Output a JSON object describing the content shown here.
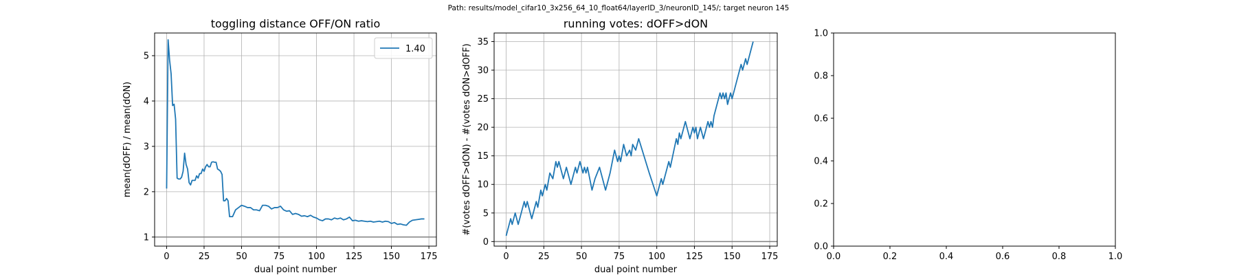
{
  "suptitle": "Path: results/model_cifar10_3x256_64_10_float64/layerID_3/neuronID_145/; target neuron 145",
  "colors": {
    "line": "#1f77b4",
    "hline": "#808080",
    "grid": "#b0b0b0",
    "axes": "#000000"
  },
  "chart_data": [
    {
      "type": "line",
      "title": "toggling distance OFF/ON ratio",
      "xlabel": "dual point number",
      "ylabel": "mean(dOFF) / mean(dON)",
      "xlim": [
        -8,
        180
      ],
      "ylim": [
        0.8,
        5.5
      ],
      "xticks": [
        0,
        25,
        50,
        75,
        100,
        125,
        150,
        175
      ],
      "yticks": [
        1,
        2,
        3,
        4,
        5
      ],
      "grid": true,
      "legend": {
        "position": "top-right",
        "entries": [
          "1.40"
        ]
      },
      "hline": 1,
      "series": [
        {
          "name": "1.40",
          "points": [
            [
              0,
              2.07
            ],
            [
              1,
              5.35
            ],
            [
              2,
              4.9
            ],
            [
              3,
              4.6
            ],
            [
              4,
              3.9
            ],
            [
              5,
              3.93
            ],
            [
              6,
              3.6
            ],
            [
              7,
              2.3
            ],
            [
              8,
              2.28
            ],
            [
              9,
              2.28
            ],
            [
              10,
              2.32
            ],
            [
              11,
              2.45
            ],
            [
              12,
              2.85
            ],
            [
              13,
              2.6
            ],
            [
              14,
              2.5
            ],
            [
              15,
              2.2
            ],
            [
              16,
              2.15
            ],
            [
              17,
              2.25
            ],
            [
              18,
              2.25
            ],
            [
              19,
              2.25
            ],
            [
              20,
              2.35
            ],
            [
              21,
              2.3
            ],
            [
              22,
              2.4
            ],
            [
              23,
              2.4
            ],
            [
              24,
              2.5
            ],
            [
              25,
              2.45
            ],
            [
              26,
              2.55
            ],
            [
              27,
              2.6
            ],
            [
              28,
              2.55
            ],
            [
              29,
              2.55
            ],
            [
              30,
              2.65
            ],
            [
              31,
              2.66
            ],
            [
              32,
              2.65
            ],
            [
              33,
              2.65
            ],
            [
              34,
              2.5
            ],
            [
              35,
              2.48
            ],
            [
              36,
              2.45
            ],
            [
              37,
              2.38
            ],
            [
              38,
              1.8
            ],
            [
              39,
              1.8
            ],
            [
              40,
              1.85
            ],
            [
              41,
              1.8
            ],
            [
              42,
              1.45
            ],
            [
              43,
              1.45
            ],
            [
              44,
              1.45
            ],
            [
              46,
              1.6
            ],
            [
              48,
              1.65
            ],
            [
              50,
              1.7
            ],
            [
              52,
              1.68
            ],
            [
              54,
              1.65
            ],
            [
              56,
              1.65
            ],
            [
              58,
              1.6
            ],
            [
              60,
              1.6
            ],
            [
              62,
              1.58
            ],
            [
              64,
              1.7
            ],
            [
              66,
              1.7
            ],
            [
              68,
              1.68
            ],
            [
              70,
              1.62
            ],
            [
              72,
              1.65
            ],
            [
              74,
              1.65
            ],
            [
              76,
              1.68
            ],
            [
              78,
              1.6
            ],
            [
              80,
              1.57
            ],
            [
              82,
              1.58
            ],
            [
              84,
              1.5
            ],
            [
              86,
              1.52
            ],
            [
              88,
              1.5
            ],
            [
              90,
              1.46
            ],
            [
              92,
              1.47
            ],
            [
              94,
              1.45
            ],
            [
              96,
              1.48
            ],
            [
              98,
              1.44
            ],
            [
              100,
              1.42
            ],
            [
              102,
              1.38
            ],
            [
              104,
              1.36
            ],
            [
              106,
              1.4
            ],
            [
              108,
              1.4
            ],
            [
              110,
              1.38
            ],
            [
              112,
              1.42
            ],
            [
              114,
              1.4
            ],
            [
              116,
              1.42
            ],
            [
              118,
              1.38
            ],
            [
              120,
              1.4
            ],
            [
              122,
              1.44
            ],
            [
              124,
              1.36
            ],
            [
              126,
              1.37
            ],
            [
              128,
              1.35
            ],
            [
              130,
              1.36
            ],
            [
              132,
              1.35
            ],
            [
              134,
              1.34
            ],
            [
              136,
              1.35
            ],
            [
              138,
              1.33
            ],
            [
              140,
              1.34
            ],
            [
              142,
              1.35
            ],
            [
              144,
              1.33
            ],
            [
              146,
              1.35
            ],
            [
              148,
              1.34
            ],
            [
              150,
              1.3
            ],
            [
              152,
              1.32
            ],
            [
              154,
              1.28
            ],
            [
              156,
              1.29
            ],
            [
              158,
              1.27
            ],
            [
              160,
              1.26
            ],
            [
              162,
              1.33
            ],
            [
              164,
              1.37
            ],
            [
              166,
              1.38
            ],
            [
              168,
              1.39
            ],
            [
              170,
              1.4
            ],
            [
              172,
              1.4
            ]
          ]
        }
      ]
    },
    {
      "type": "line",
      "title": "running votes: dOFF>dON",
      "xlabel": "dual point number",
      "ylabel": "#(votes dOFF>dON) - #(votes dON>dOFF)",
      "xlim": [
        -8,
        180
      ],
      "ylim": [
        -0.8,
        36.5
      ],
      "xticks": [
        0,
        25,
        50,
        75,
        100,
        125,
        150,
        175
      ],
      "yticks": [
        0,
        5,
        10,
        15,
        20,
        25,
        30,
        35
      ],
      "grid": true,
      "hline": 0,
      "series": [
        {
          "name": "",
          "points": [
            [
              0,
              1
            ],
            [
              2,
              3
            ],
            [
              3,
              4
            ],
            [
              4,
              3
            ],
            [
              6,
              5
            ],
            [
              8,
              3
            ],
            [
              10,
              5
            ],
            [
              12,
              7
            ],
            [
              13,
              6
            ],
            [
              14,
              7
            ],
            [
              17,
              4
            ],
            [
              19,
              6
            ],
            [
              20,
              7
            ],
            [
              21,
              6
            ],
            [
              23,
              9
            ],
            [
              24,
              8
            ],
            [
              26,
              10
            ],
            [
              27,
              9
            ],
            [
              29,
              12
            ],
            [
              31,
              11
            ],
            [
              33,
              14
            ],
            [
              34,
              13
            ],
            [
              35,
              14
            ],
            [
              38,
              11
            ],
            [
              40,
              13
            ],
            [
              41,
              12
            ],
            [
              43,
              10
            ],
            [
              46,
              13
            ],
            [
              47,
              12
            ],
            [
              49,
              14
            ],
            [
              51,
              12
            ],
            [
              52,
              13
            ],
            [
              53,
              12
            ],
            [
              54,
              13
            ],
            [
              57,
              9
            ],
            [
              58,
              10
            ],
            [
              59,
              11
            ],
            [
              62,
              13
            ],
            [
              66,
              9
            ],
            [
              69,
              12
            ],
            [
              72,
              16
            ],
            [
              73,
              15
            ],
            [
              74,
              14
            ],
            [
              75,
              15
            ],
            [
              76,
              14
            ],
            [
              78,
              17
            ],
            [
              79,
              16
            ],
            [
              80,
              15
            ],
            [
              82,
              16
            ],
            [
              83,
              15
            ],
            [
              84,
              17
            ],
            [
              86,
              16
            ],
            [
              88,
              18
            ],
            [
              95,
              12
            ],
            [
              100,
              8
            ],
            [
              103,
              11
            ],
            [
              104,
              10
            ],
            [
              108,
              14
            ],
            [
              109,
              13
            ],
            [
              113,
              18
            ],
            [
              114,
              17
            ],
            [
              115,
              19
            ],
            [
              116,
              18
            ],
            [
              119,
              21
            ],
            [
              121,
              19
            ],
            [
              122,
              18
            ],
            [
              124,
              20
            ],
            [
              125,
              19
            ],
            [
              126,
              20
            ],
            [
              127,
              18
            ],
            [
              129,
              20
            ],
            [
              130,
              19
            ],
            [
              131,
              18
            ],
            [
              134,
              21
            ],
            [
              135,
              20
            ],
            [
              136,
              21
            ],
            [
              137,
              20
            ],
            [
              138,
              22
            ],
            [
              141,
              25
            ],
            [
              142,
              26
            ],
            [
              143,
              25
            ],
            [
              144,
              26
            ],
            [
              145,
              25
            ],
            [
              146,
              26
            ],
            [
              147,
              24
            ],
            [
              148,
              25
            ],
            [
              149,
              26
            ],
            [
              150,
              25
            ],
            [
              152,
              27
            ],
            [
              154,
              29
            ],
            [
              155,
              30
            ],
            [
              156,
              31
            ],
            [
              157,
              30
            ],
            [
              158,
              31
            ],
            [
              159,
              32
            ],
            [
              160,
              31
            ],
            [
              161,
              32
            ],
            [
              162,
              33
            ],
            [
              163,
              34
            ],
            [
              164,
              35
            ]
          ]
        }
      ]
    },
    {
      "type": "line",
      "title": "",
      "xlabel": "",
      "ylabel": "",
      "xlim": [
        0,
        1
      ],
      "ylim": [
        0,
        1
      ],
      "xticks": [
        0,
        0.2,
        0.4,
        0.6,
        0.8,
        1
      ],
      "yticks": [
        0,
        0.2,
        0.4,
        0.6,
        0.8,
        1
      ],
      "xticklabels": [
        "0.0",
        "0.2",
        "0.4",
        "0.6",
        "0.8",
        "1.0"
      ],
      "yticklabels": [
        "0.0",
        "0.2",
        "0.4",
        "0.6",
        "0.8",
        "1.0"
      ],
      "grid": false,
      "series": []
    }
  ]
}
